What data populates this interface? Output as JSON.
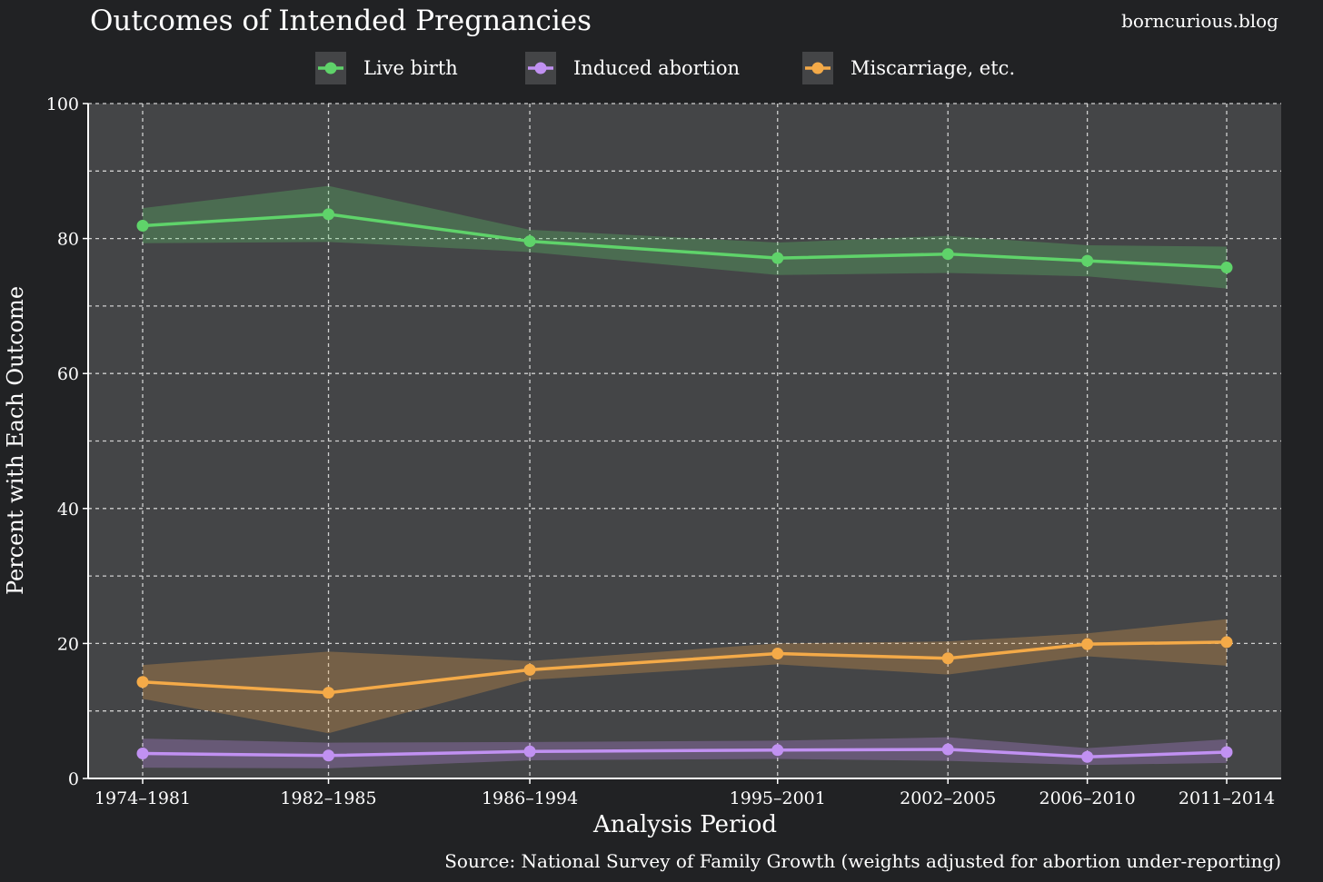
{
  "chart_data": {
    "type": "line",
    "title": "Outcomes of Intended Pregnancies",
    "watermark": "borncurious.blog",
    "source": "Source: National Survey of Family Growth (weights adjusted for abortion under-reporting)",
    "xlabel": "Analysis Period",
    "ylabel": "Percent with Each Outcome",
    "ylim": [
      0,
      100
    ],
    "yticks": [
      0,
      20,
      40,
      60,
      80,
      100
    ],
    "grid": true,
    "legend_position": "top-center",
    "x_midyears": [
      1977.5,
      1983.5,
      1990,
      1998,
      2003.5,
      2008,
      2012.5
    ],
    "categories": [
      "1974–1981",
      "1982–1985",
      "1986–1994",
      "1995–2001",
      "2002–2005",
      "2006–2010",
      "2011–2014"
    ],
    "series": [
      {
        "name": "Live birth",
        "color": "#5fd36a",
        "values": [
          81.9,
          83.6,
          79.6,
          77.1,
          77.7,
          76.7,
          75.7
        ],
        "lower": [
          79.3,
          79.5,
          78.0,
          74.6,
          74.9,
          74.4,
          72.6
        ],
        "upper": [
          84.5,
          87.8,
          81.3,
          79.4,
          80.4,
          79.0,
          78.8
        ]
      },
      {
        "name": "Induced abortion",
        "color": "#c191f2",
        "values": [
          3.7,
          3.4,
          4.0,
          4.2,
          4.3,
          3.2,
          3.9
        ],
        "lower": [
          1.6,
          1.5,
          2.7,
          2.9,
          2.6,
          2.0,
          2.3
        ],
        "upper": [
          5.9,
          5.3,
          5.4,
          5.6,
          6.1,
          4.5,
          5.8
        ]
      },
      {
        "name": "Miscarriage, etc.",
        "color": "#f4aa48",
        "values": [
          14.3,
          12.7,
          16.1,
          18.5,
          17.8,
          19.9,
          20.2
        ],
        "lower": [
          11.8,
          6.7,
          14.6,
          16.9,
          15.4,
          18.1,
          16.7
        ],
        "upper": [
          16.8,
          18.8,
          17.4,
          20.0,
          20.3,
          21.5,
          23.6
        ]
      }
    ]
  }
}
